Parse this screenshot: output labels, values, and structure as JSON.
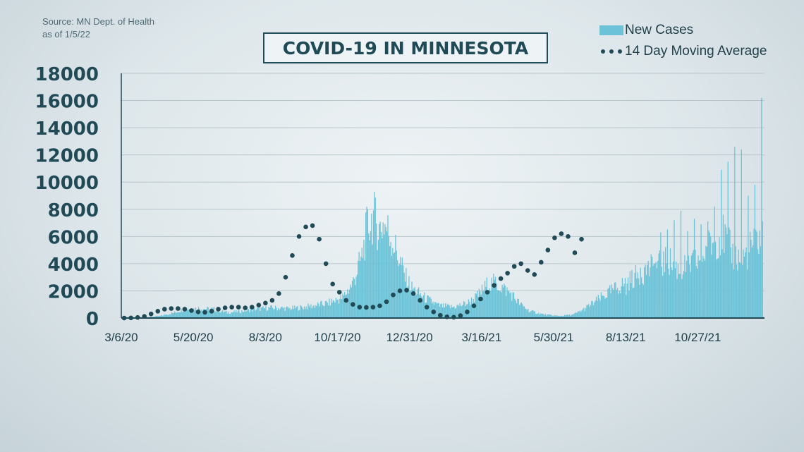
{
  "source": {
    "line1": "Source: MN Dept. of Health",
    "line2": "as of 1/5/22"
  },
  "chart_data": {
    "type": "bar",
    "title": "COVID-19 IN MINNESOTA",
    "xlabel": "",
    "ylabel": "",
    "ylim": [
      0,
      18000
    ],
    "yticks": [
      0,
      2000,
      4000,
      6000,
      8000,
      10000,
      12000,
      14000,
      16000,
      18000
    ],
    "x_tick_labels": [
      "3/6/20",
      "5/20/20",
      "8/3/20",
      "10/17/20",
      "12/31/20",
      "3/16/21",
      "5/30/21",
      "8/13/21",
      "10/27/21"
    ],
    "x_tick_index": [
      0,
      75,
      150,
      225,
      300,
      375,
      450,
      525,
      600
    ],
    "grid": true,
    "legend_position": "top-right",
    "colors": {
      "bars": "#6cc3d8",
      "average": "#1f4a56",
      "grid": "#b7c6cc",
      "axis": "#1f4a56"
    },
    "series": [
      {
        "name": "New Cases",
        "kind": "bar",
        "step_days": 1,
        "anchors": [
          [
            0,
            0
          ],
          [
            20,
            30
          ],
          [
            40,
            150
          ],
          [
            55,
            400
          ],
          [
            65,
            650
          ],
          [
            80,
            700
          ],
          [
            95,
            650
          ],
          [
            110,
            400
          ],
          [
            125,
            500
          ],
          [
            140,
            650
          ],
          [
            155,
            750
          ],
          [
            175,
            700
          ],
          [
            190,
            800
          ],
          [
            200,
            900
          ],
          [
            215,
            1100
          ],
          [
            230,
            1500
          ],
          [
            240,
            2500
          ],
          [
            250,
            4500
          ],
          [
            255,
            6500
          ],
          [
            262,
            7500
          ],
          [
            268,
            6500
          ],
          [
            273,
            7000
          ],
          [
            280,
            6000
          ],
          [
            288,
            4500
          ],
          [
            295,
            3000
          ],
          [
            302,
            2200
          ],
          [
            315,
            1500
          ],
          [
            330,
            900
          ],
          [
            345,
            800
          ],
          [
            360,
            1100
          ],
          [
            370,
            1600
          ],
          [
            380,
            2400
          ],
          [
            388,
            2600
          ],
          [
            395,
            2300
          ],
          [
            405,
            1800
          ],
          [
            415,
            1000
          ],
          [
            425,
            500
          ],
          [
            440,
            250
          ],
          [
            455,
            150
          ],
          [
            470,
            250
          ],
          [
            480,
            600
          ],
          [
            495,
            1300
          ],
          [
            510,
            2000
          ],
          [
            525,
            2600
          ],
          [
            540,
            3300
          ],
          [
            555,
            3800
          ],
          [
            570,
            4200
          ],
          [
            580,
            3500
          ],
          [
            590,
            3900
          ],
          [
            600,
            4200
          ],
          [
            615,
            5600
          ],
          [
            625,
            6200
          ],
          [
            635,
            4800
          ],
          [
            645,
            4200
          ],
          [
            655,
            5200
          ],
          [
            662,
            5800
          ],
          [
            667,
            6000
          ]
        ],
        "spikes": [
          [
            525,
            1700
          ],
          [
            532,
            2200
          ],
          [
            540,
            3700
          ],
          [
            547,
            3900
          ],
          [
            554,
            4000
          ],
          [
            561,
            6300
          ],
          [
            568,
            6500
          ],
          [
            575,
            7200
          ],
          [
            582,
            7900
          ],
          [
            589,
            6400
          ],
          [
            596,
            7300
          ],
          [
            603,
            6900
          ],
          [
            610,
            7100
          ],
          [
            617,
            8200
          ],
          [
            624,
            10900
          ],
          [
            631,
            11500
          ],
          [
            638,
            12600
          ],
          [
            645,
            12400
          ],
          [
            652,
            9000
          ],
          [
            659,
            9800
          ],
          [
            666,
            16200
          ]
        ]
      },
      {
        "name": "14 Day Moving Average",
        "kind": "dotted",
        "step_days": 7,
        "values": [
          0,
          10,
          40,
          120,
          300,
          500,
          650,
          700,
          700,
          650,
          550,
          450,
          420,
          500,
          650,
          750,
          800,
          800,
          750,
          800,
          950,
          1100,
          1300,
          1800,
          3000,
          4600,
          6000,
          6700,
          6800,
          5800,
          4000,
          2500,
          1900,
          1300,
          1000,
          800,
          780,
          800,
          900,
          1200,
          1700,
          2000,
          2050,
          1800,
          1300,
          800,
          450,
          200,
          90,
          60,
          180,
          450,
          900,
          1400,
          1900,
          2400,
          2900,
          3300,
          3800,
          4000,
          3500,
          3200,
          4100,
          5000,
          5900,
          6200,
          6000,
          4800,
          5800
        ]
      }
    ]
  }
}
